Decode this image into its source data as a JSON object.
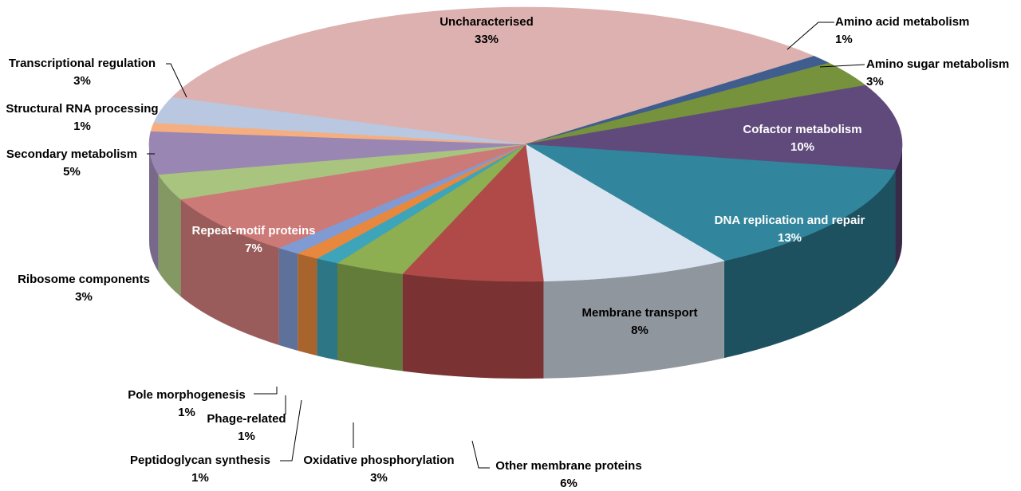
{
  "chart_data": {
    "type": "pie",
    "style": "3d-exploded-none",
    "slices": [
      {
        "label": "Uncharacterised",
        "value": 33,
        "pct_text": "33%",
        "color": "#DCB1B0",
        "label_pos": "inside",
        "label_color": "#000000"
      },
      {
        "label": "Amino acid metabolism",
        "value": 1,
        "pct_text": "1%",
        "color": "#3F5D8E",
        "label_pos": "outside-right",
        "label_color": "#000000"
      },
      {
        "label": "Amino sugar metabolism",
        "value": 3,
        "pct_text": "3%",
        "color": "#76923C",
        "label_pos": "outside-right",
        "label_color": "#000000"
      },
      {
        "label": "Cofactor metabolism",
        "value": 10,
        "pct_text": "10%",
        "color": "#604A7B",
        "label_pos": "inside",
        "label_color": "#FFFFFF"
      },
      {
        "label": "DNA replication and repair",
        "value": 13,
        "pct_text": "13%",
        "color": "#31859C",
        "label_pos": "inside",
        "label_color": "#FFFFFF"
      },
      {
        "label": "Membrane transport",
        "value": 8,
        "pct_text": "8%",
        "color": "#DBE5F1",
        "label_pos": "inside",
        "label_color": "#000000"
      },
      {
        "label": "Other membrane proteins",
        "value": 6,
        "pct_text": "6%",
        "color": "#B04A48",
        "label_pos": "outside-bottom",
        "label_color": "#000000"
      },
      {
        "label": "Oxidative phosphorylation",
        "value": 3,
        "pct_text": "3%",
        "color": "#8DAE51",
        "label_pos": "outside-bottom",
        "label_color": "#000000"
      },
      {
        "label": "Peptidoglycan synthesis",
        "value": 1,
        "pct_text": "1%",
        "color": "#3EA4BA",
        "label_pos": "outside-bottom",
        "label_color": "#000000"
      },
      {
        "label": "Phage-related",
        "value": 1,
        "pct_text": "1%",
        "color": "#E8883E",
        "label_pos": "outside-bottom",
        "label_color": "#000000"
      },
      {
        "label": "Pole morphogenesis",
        "value": 1,
        "pct_text": "1%",
        "color": "#809BD3",
        "label_pos": "outside-bottom",
        "label_color": "#000000"
      },
      {
        "label": "Repeat-motif proteins",
        "value": 7,
        "pct_text": "7%",
        "color": "#CC7A78",
        "label_pos": "inside",
        "label_color": "#FFFFFF"
      },
      {
        "label": "Ribosome components",
        "value": 3,
        "pct_text": "3%",
        "color": "#A9C47F",
        "label_pos": "outside-left",
        "label_color": "#000000"
      },
      {
        "label": "Secondary metabolism",
        "value": 5,
        "pct_text": "5%",
        "color": "#9A86B2",
        "label_pos": "outside-left",
        "label_color": "#000000"
      },
      {
        "label": "Structural RNA processing",
        "value": 1,
        "pct_text": "1%",
        "color": "#F5AE80",
        "label_pos": "outside-left",
        "label_color": "#000000"
      },
      {
        "label": "Transcriptional regulation",
        "value": 3,
        "pct_text": "3%",
        "color": "#B9C7E0",
        "label_pos": "outside-left",
        "label_color": "#000000"
      }
    ],
    "legend": "none"
  }
}
